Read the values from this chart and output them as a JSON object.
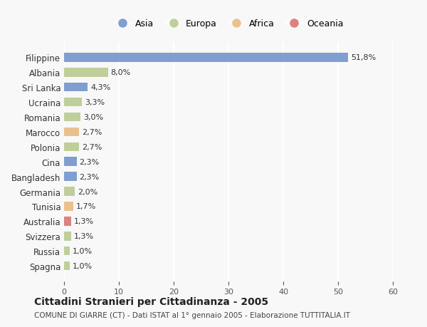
{
  "countries": [
    "Filippine",
    "Albania",
    "Sri Lanka",
    "Ucraina",
    "Romania",
    "Marocco",
    "Polonia",
    "Cina",
    "Bangladesh",
    "Germania",
    "Tunisia",
    "Australia",
    "Svizzera",
    "Russia",
    "Spagna"
  ],
  "values": [
    51.8,
    8.0,
    4.3,
    3.3,
    3.0,
    2.7,
    2.7,
    2.3,
    2.3,
    2.0,
    1.7,
    1.3,
    1.3,
    1.0,
    1.0
  ],
  "labels": [
    "51,8%",
    "8,0%",
    "4,3%",
    "3,3%",
    "3,0%",
    "2,7%",
    "2,7%",
    "2,3%",
    "2,3%",
    "2,0%",
    "1,7%",
    "1,3%",
    "1,3%",
    "1,0%",
    "1,0%"
  ],
  "continents": [
    "Asia",
    "Europa",
    "Asia",
    "Europa",
    "Europa",
    "Africa",
    "Europa",
    "Asia",
    "Asia",
    "Europa",
    "Africa",
    "Oceania",
    "Europa",
    "Europa",
    "Europa"
  ],
  "colors": {
    "Asia": "#6b8fc9",
    "Europa": "#b5c78a",
    "Africa": "#e8b87a",
    "Oceania": "#d96b6b"
  },
  "legend_order": [
    "Asia",
    "Europa",
    "Africa",
    "Oceania"
  ],
  "xlim": [
    0,
    60
  ],
  "xticks": [
    0,
    10,
    20,
    30,
    40,
    50,
    60
  ],
  "title": "Cittadini Stranieri per Cittadinanza - 2005",
  "subtitle": "COMUNE DI GIARRE (CT) - Dati ISTAT al 1° gennaio 2005 - Elaborazione TUTTITALIA.IT",
  "bg_color": "#f8f8f8",
  "grid_color": "#ffffff",
  "bar_height": 0.6
}
